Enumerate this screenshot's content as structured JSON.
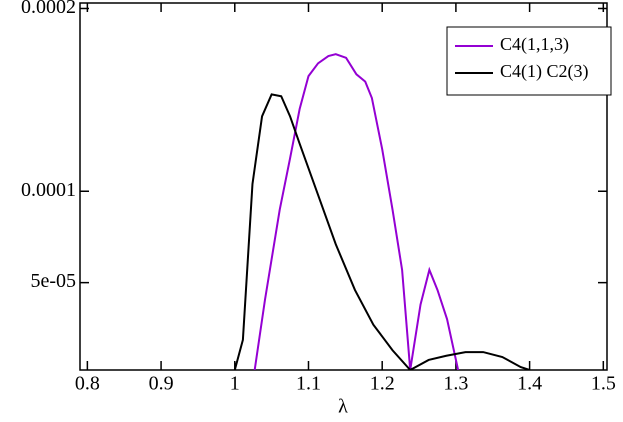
{
  "chart_data": {
    "type": "line",
    "xlabel": "λ",
    "xlim": [
      0.79,
      1.505
    ],
    "ylim": [
      2.2e-06,
      0.000203
    ],
    "xticks": [
      0.8,
      0.9,
      1,
      1.1,
      1.2,
      1.3,
      1.4,
      1.5
    ],
    "yticks": [
      {
        "value": 5e-05,
        "label": "5e-05"
      },
      0.0001,
      0.0002
    ],
    "legend": "upper right",
    "series": [
      {
        "name": "C4(1,1,3)",
        "color": "#9400d3",
        "x": [
          1.027,
          1.041,
          1.061,
          1.075,
          1.088,
          1.1,
          1.113,
          1.127,
          1.137,
          1.151,
          1.165,
          1.177,
          1.186,
          1.2,
          1.214,
          1.227,
          1.238,
          1.252,
          1.264,
          1.275,
          1.288,
          1.303
        ],
        "values": [
          2.2e-06,
          4.07e-05,
          9e-05,
          0.000118,
          0.000145,
          0.000163,
          0.00017,
          0.000174,
          0.000175,
          0.000173,
          0.000164,
          0.00016,
          0.000151,
          0.000123,
          9e-05,
          5.7e-05,
          2.2e-06,
          3.8e-05,
          5.7e-05,
          4.6e-05,
          3e-05,
          2.2e-06
        ]
      },
      {
        "name": "C4(1) C2(3)",
        "color": "#000000",
        "x": [
          1.0,
          1.011,
          1.024,
          1.037,
          1.05,
          1.063,
          1.075,
          1.088,
          1.113,
          1.137,
          1.163,
          1.188,
          1.214,
          1.238,
          1.263,
          1.287,
          1.313,
          1.337,
          1.363,
          1.388,
          1.4
        ],
        "values": [
          2.2e-06,
          1.87e-05,
          0.000104,
          0.000141,
          0.000153,
          0.000152,
          0.000141,
          0.000126,
          9.8e-05,
          7.1e-05,
          4.6e-05,
          2.7e-05,
          1.3e-05,
          2.2e-06,
          7.7e-06,
          1e-05,
          1.2e-05,
          1.2e-05,
          9.3e-06,
          3.8e-06,
          2.2e-06
        ]
      }
    ]
  }
}
